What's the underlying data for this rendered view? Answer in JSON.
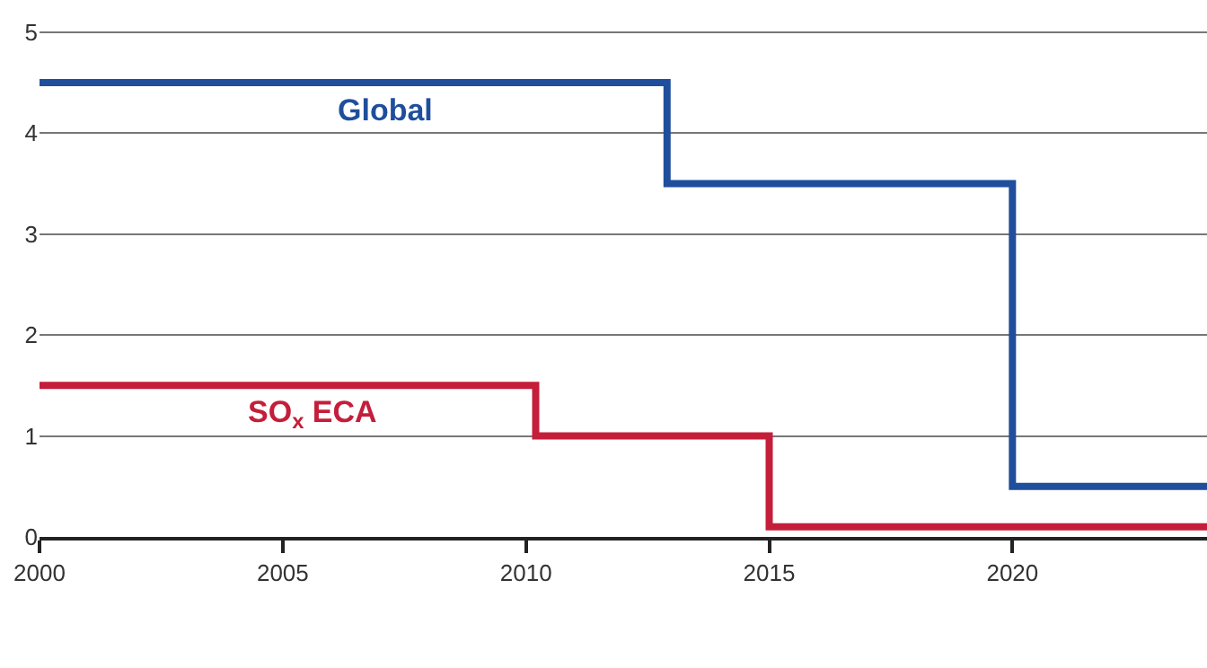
{
  "chart_data": {
    "type": "step",
    "xlim": [
      2000,
      2024
    ],
    "xticks": [
      2000,
      2005,
      2010,
      2015,
      2020
    ],
    "ylim": [
      0,
      5.3
    ],
    "yticks": [
      0,
      1,
      2,
      3,
      4,
      5
    ],
    "grid": "y",
    "legend": false,
    "series": [
      {
        "name": "Global",
        "color": "#1f4e9c",
        "x": [
          2000,
          2012.9,
          2020,
          2024
        ],
        "values": [
          4.5,
          3.5,
          0.5,
          0.5
        ]
      },
      {
        "name": "SO$_{x}$ ECA",
        "color": "#c41e3a",
        "x": [
          2000,
          2010.2,
          2015,
          2024
        ],
        "values": [
          1.5,
          1.0,
          0.1,
          0.1
        ]
      }
    ]
  }
}
